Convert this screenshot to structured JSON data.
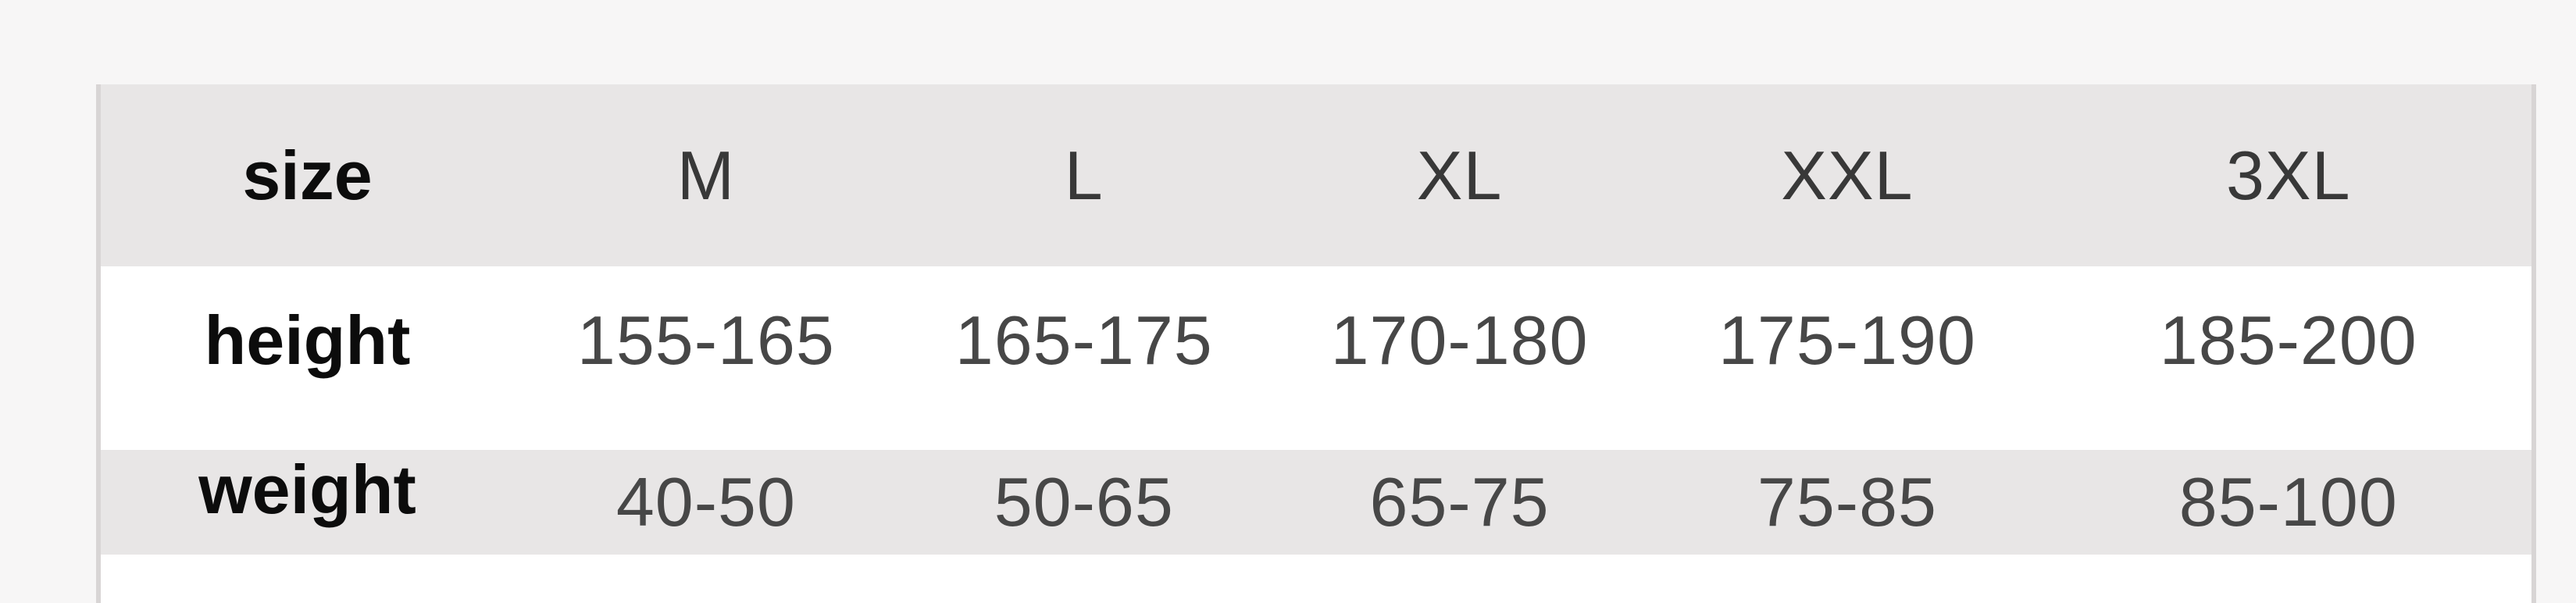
{
  "chart_data": {
    "type": "table",
    "columns": [
      "size",
      "M",
      "L",
      "XL",
      "XXL",
      "3XL"
    ],
    "rows": [
      {
        "label": "height",
        "values": [
          "155-165",
          "165-175",
          "170-180",
          "175-190",
          "185-200"
        ]
      },
      {
        "label": "weight",
        "values": [
          "40-50",
          "50-65",
          "65-75",
          "75-85",
          "85-100"
        ]
      }
    ],
    "layout": {
      "header_position": "top-row",
      "row_label_position": "first-column",
      "zebra_striping": true
    }
  },
  "colors": {
    "page_bg": "#f7f6f6",
    "row_gray": "#e8e6e6",
    "row_white": "#ffffff",
    "label_text": "#0c0c0c",
    "header_value_text": "#383838",
    "value_text": "#474747",
    "table_border": "#d8d5d5"
  }
}
